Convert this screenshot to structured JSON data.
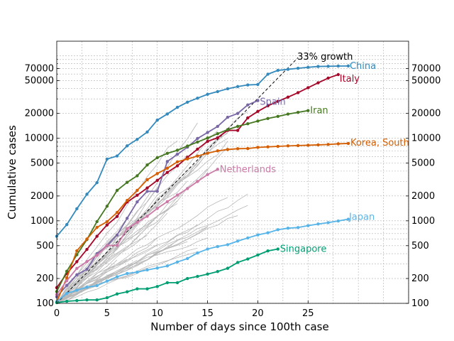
{
  "chart_data": {
    "type": "line",
    "xlabel": "Number of days since 100th case",
    "ylabel": "Cumulative cases",
    "xlim": [
      0,
      35
    ],
    "ylim": [
      100,
      150000
    ],
    "yscale": "log",
    "grid": true,
    "xticks": [
      0,
      5,
      10,
      15,
      20,
      25
    ],
    "yticks": [
      100,
      200,
      500,
      1000,
      2000,
      5000,
      10000,
      20000,
      50000,
      70000
    ],
    "ytick_labels": [
      "100",
      "200",
      "500",
      "1000",
      "2000",
      "5000",
      "10000",
      "20000",
      "50000",
      "70000"
    ],
    "xtick_labels": [
      "0",
      "5",
      "10",
      "15",
      "20",
      "25"
    ],
    "mirror_y_axis": "right",
    "annotations": [
      {
        "text": "33% growth",
        "from": [
          0,
          100
        ],
        "to": [
          24,
          95000
        ],
        "style": "dashed"
      }
    ],
    "series": [
      {
        "name": "China",
        "color": "#348abd",
        "x": [
          0,
          1,
          2,
          3,
          4,
          5,
          6,
          7,
          8,
          9,
          10,
          11,
          12,
          13,
          14,
          15,
          16,
          17,
          18,
          19,
          20,
          21,
          22,
          23,
          24,
          25,
          26,
          27,
          28,
          29
        ],
        "y": [
          650,
          900,
          1400,
          2100,
          2900,
          5600,
          6100,
          8100,
          9700,
          11900,
          16600,
          19700,
          23700,
          27400,
          30600,
          34100,
          36800,
          39800,
          42300,
          44300,
          44800,
          59800,
          66500,
          68500,
          70500,
          72400,
          74100,
          74500,
          75000,
          75200
        ]
      },
      {
        "name": "Italy",
        "color": "#a60628",
        "x": [
          0,
          1,
          2,
          3,
          4,
          5,
          6,
          7,
          8,
          9,
          10,
          11,
          12,
          13,
          14,
          15,
          16,
          17,
          18,
          19,
          20,
          21,
          22,
          23,
          24,
          25,
          26,
          27,
          28
        ],
        "y": [
          155,
          230,
          320,
          450,
          650,
          890,
          1130,
          1690,
          2040,
          2500,
          3090,
          3860,
          4640,
          5880,
          7380,
          9170,
          10150,
          12460,
          12460,
          17660,
          21160,
          24750,
          27980,
          31500,
          35700,
          41000,
          47000,
          53600,
          59100
        ]
      },
      {
        "name": "Spain",
        "color": "#7a68a6",
        "x": [
          0,
          1,
          2,
          3,
          4,
          5,
          6,
          7,
          8,
          9,
          10,
          11,
          12,
          13,
          14,
          15,
          16,
          17,
          18,
          19,
          20
        ],
        "y": [
          120,
          165,
          222,
          259,
          400,
          500,
          673,
          1073,
          1695,
          2277,
          2277,
          5232,
          6391,
          7798,
          9942,
          11748,
          13910,
          17963,
          19980,
          25374,
          28603
        ]
      },
      {
        "name": "Iran",
        "color": "#467821",
        "x": [
          0,
          1,
          2,
          3,
          4,
          5,
          6,
          7,
          8,
          9,
          10,
          11,
          12,
          13,
          14,
          15,
          16,
          17,
          18,
          19,
          20,
          21,
          22,
          23,
          24,
          25
        ],
        "y": [
          139,
          245,
          388,
          593,
          978,
          1501,
          2336,
          2922,
          3513,
          4747,
          5823,
          6566,
          7161,
          8042,
          9000,
          10075,
          11364,
          12729,
          13938,
          14991,
          16169,
          17361,
          18407,
          19644,
          20610,
          21638
        ]
      },
      {
        "name": "Korea, South",
        "color": "#d55e00",
        "x": [
          0,
          1,
          2,
          3,
          4,
          5,
          6,
          7,
          8,
          9,
          10,
          11,
          12,
          13,
          14,
          15,
          16,
          17,
          18,
          19,
          20,
          21,
          22,
          23,
          24,
          25,
          26,
          27,
          28,
          29
        ],
        "y": [
          104,
          204,
          433,
          602,
          833,
          977,
          1261,
          1766,
          2337,
          3150,
          3736,
          4335,
          5186,
          5621,
          6088,
          6593,
          7041,
          7314,
          7478,
          7513,
          7755,
          7869,
          7979,
          8086,
          8162,
          8236,
          8320,
          8413,
          8565,
          8652
        ]
      },
      {
        "name": "Netherlands",
        "color": "#cc79a7",
        "x": [
          0,
          1,
          2,
          3,
          4,
          5,
          6,
          7,
          8,
          9,
          10,
          11,
          12,
          13,
          14,
          15,
          16
        ],
        "y": [
          128,
          188,
          265,
          321,
          382,
          503,
          503,
          804,
          959,
          1135,
          1413,
          1705,
          2051,
          2460,
          2994,
          3631,
          4204
        ]
      },
      {
        "name": "Japan",
        "color": "#56b4e9",
        "x": [
          0,
          1,
          2,
          3,
          4,
          5,
          6,
          7,
          8,
          9,
          10,
          11,
          12,
          13,
          14,
          15,
          16,
          17,
          18,
          19,
          20,
          21,
          22,
          23,
          24,
          25,
          26,
          27,
          28,
          29
        ],
        "y": [
          105,
          132,
          144,
          157,
          164,
          186,
          210,
          230,
          239,
          254,
          268,
          284,
          317,
          349,
          408,
          455,
          488,
          514,
          568,
          620,
          675,
          716,
          780,
          814,
          829,
          873,
          914,
          950,
          996,
          1046
        ]
      },
      {
        "name": "Singapore",
        "color": "#009e73",
        "x": [
          0,
          1,
          2,
          3,
          4,
          5,
          6,
          7,
          8,
          9,
          10,
          11,
          12,
          13,
          14,
          15,
          16,
          17,
          18,
          19,
          20,
          21,
          22
        ],
        "y": [
          102,
          106,
          108,
          110,
          110,
          117,
          130,
          138,
          150,
          150,
          160,
          178,
          178,
          200,
          212,
          226,
          243,
          266,
          313,
          345,
          385,
          432,
          455
        ]
      }
    ]
  }
}
